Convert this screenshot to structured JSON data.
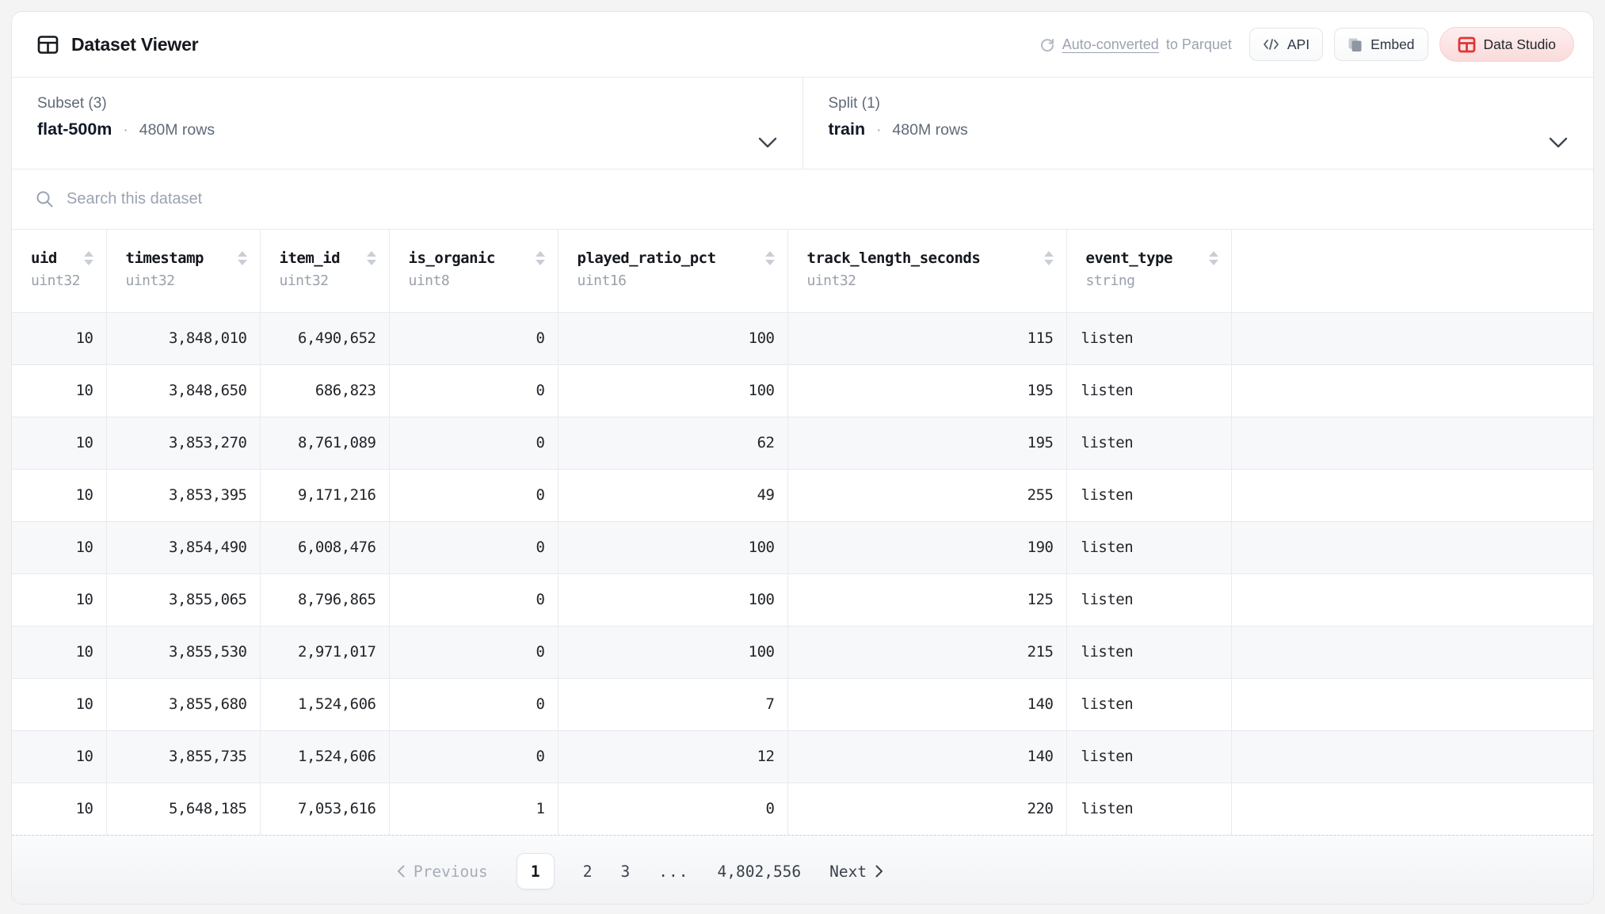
{
  "header": {
    "title": "Dataset Viewer",
    "auto_converted": {
      "action": "Auto-converted",
      "suffix": "to Parquet"
    },
    "buttons": {
      "api": "API",
      "embed": "Embed",
      "data_studio": "Data Studio"
    }
  },
  "selectors": {
    "subset": {
      "label": "Subset (3)",
      "value": "flat-500m",
      "separator": "·",
      "rows": "480M rows"
    },
    "split": {
      "label": "Split (1)",
      "value": "train",
      "separator": "·",
      "rows": "480M rows"
    }
  },
  "search": {
    "placeholder": "Search this dataset"
  },
  "table": {
    "columns": [
      {
        "name": "uid",
        "type": "uint32",
        "align": "right"
      },
      {
        "name": "timestamp",
        "type": "uint32",
        "align": "right"
      },
      {
        "name": "item_id",
        "type": "uint32",
        "align": "right"
      },
      {
        "name": "is_organic",
        "type": "uint8",
        "align": "right"
      },
      {
        "name": "played_ratio_pct",
        "type": "uint16",
        "align": "right"
      },
      {
        "name": "track_length_seconds",
        "type": "uint32",
        "align": "right"
      },
      {
        "name": "event_type",
        "type": "string",
        "align": "left"
      }
    ],
    "rows": [
      [
        "10",
        "3,848,010",
        "6,490,652",
        "0",
        "100",
        "115",
        "listen"
      ],
      [
        "10",
        "3,848,650",
        "686,823",
        "0",
        "100",
        "195",
        "listen"
      ],
      [
        "10",
        "3,853,270",
        "8,761,089",
        "0",
        "62",
        "195",
        "listen"
      ],
      [
        "10",
        "3,853,395",
        "9,171,216",
        "0",
        "49",
        "255",
        "listen"
      ],
      [
        "10",
        "3,854,490",
        "6,008,476",
        "0",
        "100",
        "190",
        "listen"
      ],
      [
        "10",
        "3,855,065",
        "8,796,865",
        "0",
        "100",
        "125",
        "listen"
      ],
      [
        "10",
        "3,855,530",
        "2,971,017",
        "0",
        "100",
        "215",
        "listen"
      ],
      [
        "10",
        "3,855,680",
        "1,524,606",
        "0",
        "7",
        "140",
        "listen"
      ],
      [
        "10",
        "3,855,735",
        "1,524,606",
        "0",
        "12",
        "140",
        "listen"
      ],
      [
        "10",
        "5,648,185",
        "7,053,616",
        "1",
        "0",
        "220",
        "listen"
      ]
    ]
  },
  "pagination": {
    "previous": "Previous",
    "pages": [
      "1",
      "2",
      "3",
      "...",
      "4,802,556"
    ],
    "active_page": "1",
    "next": "Next"
  },
  "icons": {
    "title": "table-grid-icon",
    "refresh": "refresh-icon",
    "api": "code-icon",
    "embed": "copy-icon",
    "data_studio": "table-grid-icon-red",
    "search": "search-icon",
    "selector": "chevron-down-icon",
    "sort": "sort-arrows-icon"
  },
  "colors": {
    "accent_red": "#e23434",
    "row_stripe": "#f7f8fa",
    "studio_bg": "#fadbdb"
  }
}
